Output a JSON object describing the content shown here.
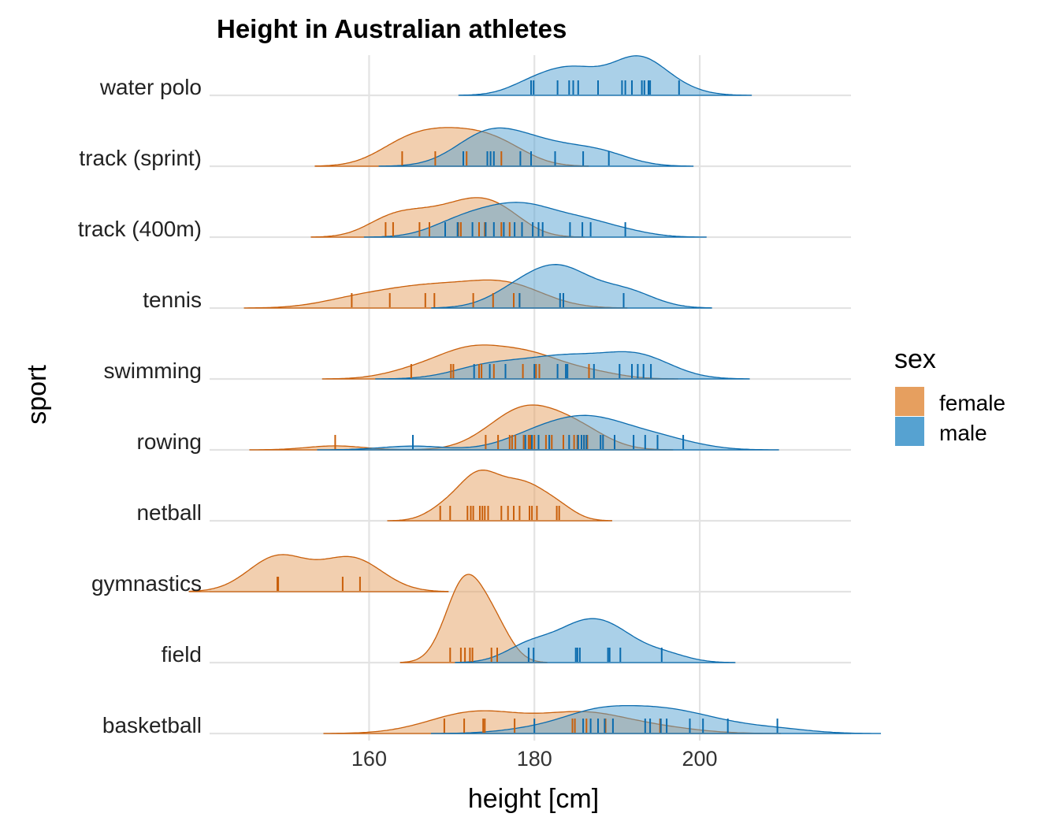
{
  "chart_data": {
    "type": "ridgeline-density",
    "title": "Height in Australian athletes",
    "xlabel": "height [cm]",
    "ylabel": "sport",
    "xlim": [
      140.7,
      218.3
    ],
    "xticks": [
      160,
      180,
      200
    ],
    "grid": true,
    "legend": {
      "title": "sex",
      "placement": "right",
      "entries": [
        {
          "label": "female",
          "color": "#E69F5F"
        },
        {
          "label": "male",
          "color": "#56A2D1"
        }
      ]
    },
    "colors": {
      "female_fill": "#E69F5F",
      "female_line": "#C95F0A",
      "male_fill": "#56A2D1",
      "male_line": "#0A6BAE"
    },
    "categories": [
      "basketball",
      "field",
      "gymnastics",
      "netball",
      "rowing",
      "swimming",
      "tennis",
      "track (400m)",
      "track (sprint)",
      "water polo"
    ],
    "series": [
      {
        "name": "female",
        "data": {
          "basketball": [
            169.1,
            171.5,
            173.8,
            174.0,
            177.6,
            184.6,
            184.9,
            186.3,
            188.6,
            195.2
          ],
          "field": [
            169.8,
            171.1,
            171.6,
            172.2,
            172.5,
            174.8,
            175.5
          ],
          "gymnastics": [
            148.9,
            149.0,
            156.8,
            158.9
          ],
          "netball": [
            168.6,
            169.8,
            171.9,
            172.3,
            172.6,
            173.4,
            173.7,
            174.0,
            174.4,
            176.0,
            176.8,
            177.5,
            178.2,
            179.4,
            179.7,
            180.3,
            182.7,
            183.0
          ],
          "rowing": [
            155.9,
            174.1,
            175.6,
            177.0,
            177.3,
            177.7,
            178.7,
            179.3,
            179.5,
            179.7,
            180.0,
            181.4,
            182.1,
            183.5,
            184.8,
            185.2,
            186.0,
            186.4
          ],
          "swimming": [
            165.1,
            169.9,
            170.2,
            173.3,
            173.6,
            175.1,
            178.6,
            180.2,
            180.6,
            186.6
          ],
          "tennis": [
            157.9,
            162.5,
            166.8,
            167.9,
            172.6,
            175.0,
            177.5,
            178.2
          ],
          "track (400m)": [
            162.0,
            162.9,
            166.1,
            167.3,
            170.8,
            171.1,
            173.3,
            174.0,
            176.0,
            177.0
          ],
          "track (sprint)": [
            164.0,
            168.0,
            171.8,
            176.0
          ]
        }
      },
      {
        "name": "male",
        "data": {
          "basketball": [
            180.0,
            185.9,
            186.8,
            187.7,
            188.5,
            189.5,
            193.4,
            194.0,
            195.3,
            196.0,
            198.8,
            200.4,
            203.4,
            209.4
          ],
          "field": [
            179.3,
            179.9,
            185.0,
            185.2,
            185.5,
            188.9,
            189.1,
            190.4,
            195.4
          ],
          "rowing": [
            165.3,
            178.9,
            179.7,
            180.5,
            181.8,
            184.2,
            185.3,
            185.7,
            186.0,
            186.3,
            188.0,
            188.3,
            189.7,
            192.0,
            193.4,
            194.9,
            198.0
          ],
          "swimming": [
            172.7,
            174.6,
            176.5,
            180.0,
            182.8,
            183.8,
            184.0,
            187.2,
            190.3,
            191.8,
            192.5,
            193.2,
            194.1
          ],
          "tennis": [
            178.2,
            183.1,
            183.5,
            190.8
          ],
          "track (400m)": [
            169.2,
            170.7,
            172.5,
            174.1,
            175.1,
            176.3,
            177.6,
            178.5,
            179.8,
            180.5,
            181.0,
            184.3,
            185.8,
            186.8,
            191.0
          ],
          "track (sprint)": [
            171.4,
            174.3,
            174.7,
            175.1,
            178.3,
            179.6,
            182.5,
            185.9,
            189.0
          ],
          "water polo": [
            179.6,
            179.9,
            182.8,
            184.2,
            184.7,
            185.3,
            187.7,
            190.6,
            191.0,
            191.8,
            193.0,
            193.3,
            193.8,
            194.0,
            197.5
          ]
        }
      }
    ]
  }
}
